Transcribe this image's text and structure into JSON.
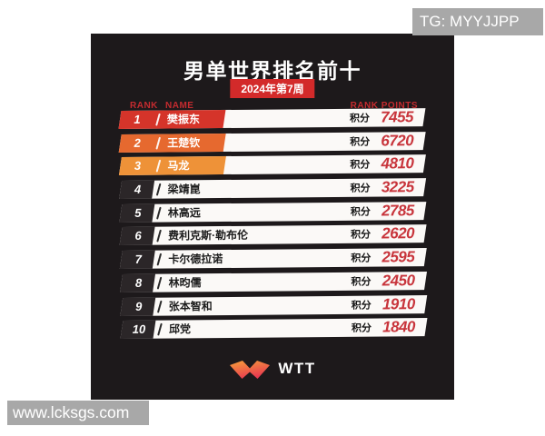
{
  "chart_data": {
    "type": "table",
    "title": "男单世界排名前十",
    "subtitle": "2024年第7周",
    "columns": [
      "RANK",
      "NAME",
      "RANK POINTS"
    ],
    "rows": [
      [
        1,
        "樊振东",
        7455
      ],
      [
        2,
        "王楚钦",
        6720
      ],
      [
        3,
        "马龙",
        4810
      ],
      [
        4,
        "梁靖崑",
        3225
      ],
      [
        5,
        "林高远",
        2785
      ],
      [
        6,
        "费利克斯·勒布伦",
        2620
      ],
      [
        7,
        "卡尔德拉诺",
        2595
      ],
      [
        8,
        "林昀儒",
        2450
      ],
      [
        9,
        "张本智和",
        1910
      ],
      [
        10,
        "邱党",
        1840
      ]
    ]
  },
  "card": {
    "title": "男单世界排名前十",
    "week_badge": "2024年第7周",
    "header": {
      "rank": "RANK",
      "name": "NAME",
      "points": "RANK POINTS"
    },
    "points_label": "积分",
    "row_accents": {
      "1": "#d5342a",
      "2": "#e6692f",
      "3": "#ee9238"
    },
    "logo_text": "WTT"
  },
  "colors": {
    "card_bg": "#1d191b",
    "badge": "#d32a2a",
    "header_text": "#c52b2f",
    "points_value": "#c8353c",
    "rank_chip": "#2b2628",
    "watermark_bg": "#a8a8a8",
    "logo_gradient_top": "#f6a03a",
    "logo_gradient_bottom": "#e83a50"
  },
  "watermarks": {
    "top_right": "TG: MYYJJPP",
    "bottom_left": "www.lcksgs.com"
  }
}
